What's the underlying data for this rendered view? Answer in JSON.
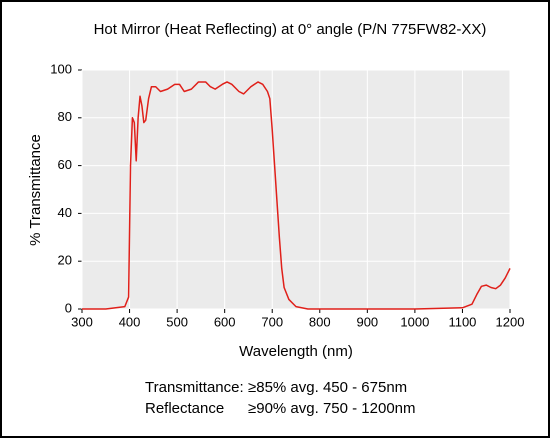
{
  "chart_data": {
    "type": "line",
    "title": "Hot Mirror (Heat Reflecting) at 0° angle (P/N 775FW82-XX)",
    "xlabel": "Wavelength (nm)",
    "ylabel": "% Transmittance",
    "x": [
      300,
      350,
      390,
      398,
      402,
      406,
      410,
      414,
      418,
      422,
      426,
      430,
      434,
      440,
      446,
      455,
      465,
      480,
      495,
      505,
      515,
      530,
      545,
      560,
      570,
      580,
      595,
      605,
      615,
      630,
      640,
      655,
      670,
      680,
      690,
      695,
      700,
      705,
      710,
      715,
      720,
      725,
      735,
      750,
      775,
      800,
      900,
      1000,
      1100,
      1120,
      1130,
      1140,
      1150,
      1160,
      1170,
      1180,
      1190,
      1200
    ],
    "values": [
      0,
      0,
      1,
      5,
      60,
      80,
      78,
      62,
      80,
      89,
      85,
      78,
      79,
      88,
      93,
      93,
      91,
      92,
      94,
      94,
      91,
      92,
      95,
      95,
      93,
      92,
      94,
      95,
      94,
      91,
      90,
      93,
      95,
      94,
      91,
      88,
      75,
      60,
      45,
      30,
      17,
      9,
      4,
      1,
      0,
      0,
      0,
      0,
      0.5,
      2,
      6,
      9.5,
      10,
      9,
      8.5,
      10,
      13,
      17
    ],
    "color": "#e0201a",
    "xlim": [
      300,
      1200
    ],
    "xticks": [
      300,
      400,
      500,
      600,
      700,
      800,
      900,
      1000,
      1100,
      1200
    ],
    "ylim": [
      0,
      100
    ],
    "yticks": [
      0,
      20,
      40,
      60,
      80,
      100
    ],
    "grid": true,
    "annotations": [
      [
        "Transmittance:",
        "≥85% avg. 450 - 675nm"
      ],
      [
        "Reflectance",
        "≥90% avg. 750 - 1200nm"
      ]
    ]
  }
}
